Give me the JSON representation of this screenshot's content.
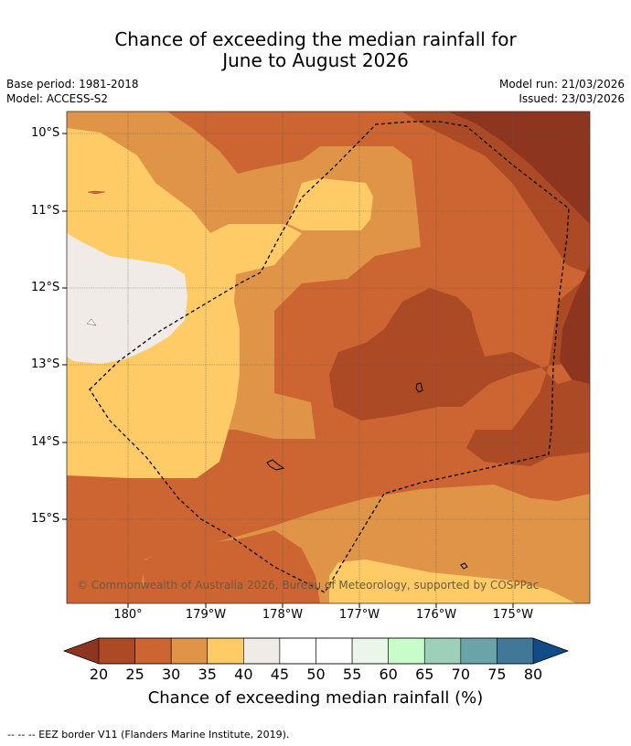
{
  "title": {
    "line1": "Chance of exceeding the median rainfall for",
    "line2": "June to August 2026"
  },
  "meta": {
    "base_period": "Base period: 1981-2018",
    "model": "Model: ACCESS-S2",
    "model_run": "Model run: 21/03/2026",
    "issued": "Issued: 23/03/2026"
  },
  "map": {
    "lat_labels": [
      "10°S",
      "11°S",
      "12°S",
      "13°S",
      "14°S",
      "15°S"
    ],
    "lon_labels": [
      "180°",
      "179°W",
      "178°W",
      "177°W",
      "176°W",
      "175°W"
    ],
    "copyright": "© Commonwealth of Australia 2026, Bureau of Meteorology, supported by COSPPac",
    "colors": {
      "below_20": "#8e3520",
      "c20_25": "#ad4a26",
      "c25_30": "#cc6532",
      "c30_35": "#e09448",
      "c35_40": "#fecb67",
      "c40_45": "#f0ebe6",
      "border": "#000000"
    }
  },
  "colorbar": {
    "ticks": [
      "20",
      "25",
      "30",
      "35",
      "40",
      "45",
      "50",
      "55",
      "60",
      "65",
      "70",
      "75",
      "80"
    ],
    "colors": [
      "#ad4a26",
      "#cc6532",
      "#e09448",
      "#fecb67",
      "#f0ebe6",
      "#ffffff",
      "#ffffff",
      "#ebf5ea",
      "#c8fdcb",
      "#9dcfb9",
      "#6aa4a8",
      "#417898"
    ],
    "low_extend_color": "#8e3520",
    "high_extend_color": "#114c87",
    "label": "Chance of exceeding median rainfall (%)"
  },
  "footnote": "--  --  -- EEZ border V11 (Flanders Marine Institute, 2019)."
}
